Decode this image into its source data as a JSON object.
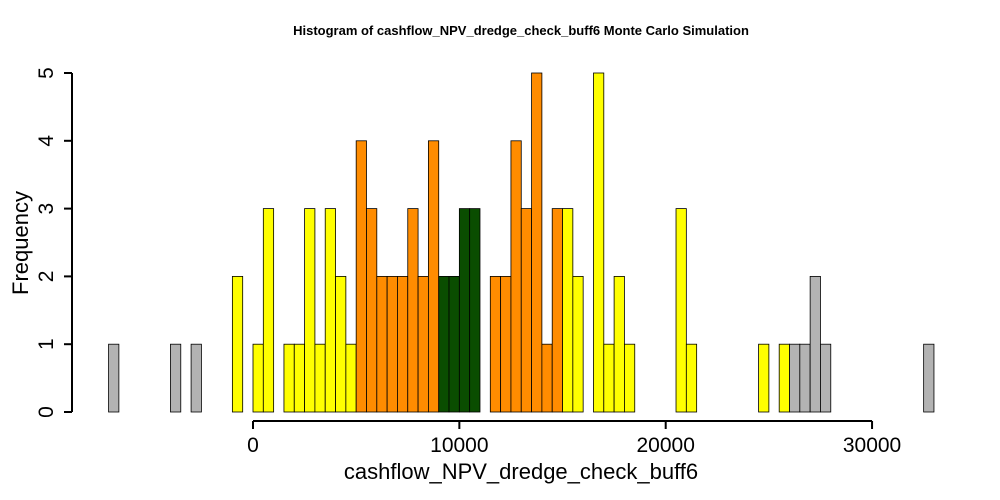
{
  "chart_data": {
    "type": "bar",
    "title": "Histogram of  cashflow_NPV_dredge_check_buff6  Monte Carlo Simulation",
    "xlabel": "cashflow_NPV_dredge_check_buff6",
    "ylabel": "Frequency",
    "bin_width": 500,
    "xlim": [
      -7000,
      33000
    ],
    "ylim": [
      0,
      5
    ],
    "x_ticks": [
      0,
      10000,
      20000,
      30000
    ],
    "y_ticks": [
      0,
      1,
      2,
      3,
      4,
      5
    ],
    "grid": false,
    "legend": "none",
    "colors": {
      "gray": "#b3b3b3",
      "yellow": "#ffff00",
      "orange": "#ff8c00",
      "green": "#0a4d00"
    },
    "bins": [
      {
        "x": -7000,
        "count": 1,
        "color": "gray"
      },
      {
        "x": -6500,
        "count": 0,
        "color": "gray"
      },
      {
        "x": -6000,
        "count": 0,
        "color": "gray"
      },
      {
        "x": -5500,
        "count": 0,
        "color": "gray"
      },
      {
        "x": -5000,
        "count": 0,
        "color": "gray"
      },
      {
        "x": -4500,
        "count": 0,
        "color": "gray"
      },
      {
        "x": -4000,
        "count": 1,
        "color": "gray"
      },
      {
        "x": -3500,
        "count": 0,
        "color": "gray"
      },
      {
        "x": -3000,
        "count": 1,
        "color": "gray"
      },
      {
        "x": -2500,
        "count": 0,
        "color": "gray"
      },
      {
        "x": -2000,
        "count": 0,
        "color": "gray"
      },
      {
        "x": -1500,
        "count": 0,
        "color": "gray"
      },
      {
        "x": -1000,
        "count": 2,
        "color": "yellow"
      },
      {
        "x": -500,
        "count": 0,
        "color": "yellow"
      },
      {
        "x": 0,
        "count": 1,
        "color": "yellow"
      },
      {
        "x": 500,
        "count": 3,
        "color": "yellow"
      },
      {
        "x": 1000,
        "count": 0,
        "color": "yellow"
      },
      {
        "x": 1500,
        "count": 1,
        "color": "yellow"
      },
      {
        "x": 2000,
        "count": 1,
        "color": "yellow"
      },
      {
        "x": 2500,
        "count": 3,
        "color": "yellow"
      },
      {
        "x": 3000,
        "count": 1,
        "color": "yellow"
      },
      {
        "x": 3500,
        "count": 3,
        "color": "yellow"
      },
      {
        "x": 4000,
        "count": 2,
        "color": "yellow"
      },
      {
        "x": 4500,
        "count": 1,
        "color": "yellow"
      },
      {
        "x": 5000,
        "count": 4,
        "color": "orange"
      },
      {
        "x": 5500,
        "count": 3,
        "color": "orange"
      },
      {
        "x": 6000,
        "count": 2,
        "color": "orange"
      },
      {
        "x": 6500,
        "count": 2,
        "color": "orange"
      },
      {
        "x": 7000,
        "count": 2,
        "color": "orange"
      },
      {
        "x": 7500,
        "count": 3,
        "color": "orange"
      },
      {
        "x": 8000,
        "count": 2,
        "color": "orange"
      },
      {
        "x": 8500,
        "count": 4,
        "color": "orange"
      },
      {
        "x": 9000,
        "count": 2,
        "color": "green"
      },
      {
        "x": 9500,
        "count": 2,
        "color": "green"
      },
      {
        "x": 10000,
        "count": 3,
        "color": "green"
      },
      {
        "x": 10500,
        "count": 3,
        "color": "green"
      },
      {
        "x": 11000,
        "count": 0,
        "color": "orange"
      },
      {
        "x": 11500,
        "count": 2,
        "color": "orange"
      },
      {
        "x": 12000,
        "count": 2,
        "color": "orange"
      },
      {
        "x": 12500,
        "count": 4,
        "color": "orange"
      },
      {
        "x": 13000,
        "count": 3,
        "color": "orange"
      },
      {
        "x": 13500,
        "count": 5,
        "color": "orange"
      },
      {
        "x": 14000,
        "count": 1,
        "color": "orange"
      },
      {
        "x": 14500,
        "count": 3,
        "color": "orange"
      },
      {
        "x": 15000,
        "count": 3,
        "color": "yellow"
      },
      {
        "x": 15500,
        "count": 2,
        "color": "yellow"
      },
      {
        "x": 16000,
        "count": 0,
        "color": "yellow"
      },
      {
        "x": 16500,
        "count": 5,
        "color": "yellow"
      },
      {
        "x": 17000,
        "count": 1,
        "color": "yellow"
      },
      {
        "x": 17500,
        "count": 2,
        "color": "yellow"
      },
      {
        "x": 18000,
        "count": 1,
        "color": "yellow"
      },
      {
        "x": 18500,
        "count": 0,
        "color": "yellow"
      },
      {
        "x": 19000,
        "count": 0,
        "color": "yellow"
      },
      {
        "x": 19500,
        "count": 0,
        "color": "yellow"
      },
      {
        "x": 20000,
        "count": 0,
        "color": "yellow"
      },
      {
        "x": 20500,
        "count": 3,
        "color": "yellow"
      },
      {
        "x": 21000,
        "count": 1,
        "color": "yellow"
      },
      {
        "x": 21500,
        "count": 0,
        "color": "yellow"
      },
      {
        "x": 22000,
        "count": 0,
        "color": "yellow"
      },
      {
        "x": 22500,
        "count": 0,
        "color": "yellow"
      },
      {
        "x": 23000,
        "count": 0,
        "color": "yellow"
      },
      {
        "x": 23500,
        "count": 0,
        "color": "yellow"
      },
      {
        "x": 24000,
        "count": 0,
        "color": "yellow"
      },
      {
        "x": 24500,
        "count": 1,
        "color": "yellow"
      },
      {
        "x": 25000,
        "count": 0,
        "color": "yellow"
      },
      {
        "x": 25500,
        "count": 1,
        "color": "yellow"
      },
      {
        "x": 26000,
        "count": 1,
        "color": "gray"
      },
      {
        "x": 26500,
        "count": 1,
        "color": "gray"
      },
      {
        "x": 27000,
        "count": 2,
        "color": "gray"
      },
      {
        "x": 27500,
        "count": 1,
        "color": "gray"
      },
      {
        "x": 28000,
        "count": 0,
        "color": "gray"
      },
      {
        "x": 28500,
        "count": 0,
        "color": "gray"
      },
      {
        "x": 29000,
        "count": 0,
        "color": "gray"
      },
      {
        "x": 29500,
        "count": 0,
        "color": "gray"
      },
      {
        "x": 30000,
        "count": 0,
        "color": "gray"
      },
      {
        "x": 30500,
        "count": 0,
        "color": "gray"
      },
      {
        "x": 31000,
        "count": 0,
        "color": "gray"
      },
      {
        "x": 31500,
        "count": 0,
        "color": "gray"
      },
      {
        "x": 32000,
        "count": 0,
        "color": "gray"
      },
      {
        "x": 32500,
        "count": 1,
        "color": "gray"
      }
    ]
  }
}
